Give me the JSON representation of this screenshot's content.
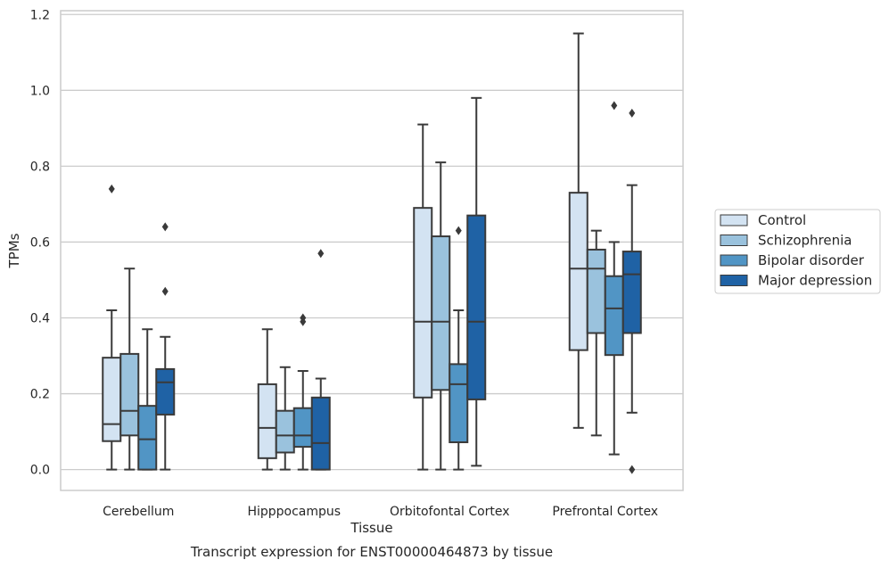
{
  "chart_data": {
    "type": "boxplot",
    "title": "Transcript expression for ENST00000464873 by tissue",
    "xlabel": "Tissue",
    "ylabel": "TPMs",
    "ylim": [
      -0.055,
      1.21
    ],
    "yticks": [
      0.0,
      0.2,
      0.4,
      0.6,
      0.8,
      1.0,
      1.2
    ],
    "ytick_labels": [
      "0.0",
      "0.2",
      "0.4",
      "0.6",
      "0.8",
      "1.0",
      "1.2"
    ],
    "grid": "horizontal",
    "legend_position": "right-outside",
    "categories": [
      "Cerebellum",
      "Hipppocampus",
      "Orbitofontal Cortex",
      "Prefrontal Cortex"
    ],
    "series": [
      {
        "name": "Control",
        "color": "#d3e3f2",
        "boxes": [
          {
            "whislo": 0.0,
            "q1": 0.075,
            "med": 0.12,
            "q3": 0.295,
            "whishi": 0.42,
            "fliers": [
              0.74
            ]
          },
          {
            "whislo": 0.0,
            "q1": 0.03,
            "med": 0.11,
            "q3": 0.225,
            "whishi": 0.37,
            "fliers": []
          },
          {
            "whislo": 0.0,
            "q1": 0.19,
            "med": 0.39,
            "q3": 0.69,
            "whishi": 0.91,
            "fliers": []
          },
          {
            "whislo": 0.11,
            "q1": 0.315,
            "med": 0.53,
            "q3": 0.73,
            "whishi": 1.15,
            "fliers": []
          }
        ]
      },
      {
        "name": "Schizophrenia",
        "color": "#9ac2dd",
        "boxes": [
          {
            "whislo": 0.0,
            "q1": 0.09,
            "med": 0.155,
            "q3": 0.305,
            "whishi": 0.53,
            "fliers": []
          },
          {
            "whislo": 0.0,
            "q1": 0.045,
            "med": 0.09,
            "q3": 0.155,
            "whishi": 0.27,
            "fliers": []
          },
          {
            "whislo": 0.0,
            "q1": 0.21,
            "med": 0.39,
            "q3": 0.615,
            "whishi": 0.81,
            "fliers": []
          },
          {
            "whislo": 0.09,
            "q1": 0.36,
            "med": 0.53,
            "q3": 0.58,
            "whishi": 0.63,
            "fliers": []
          }
        ]
      },
      {
        "name": "Bipolar disorder",
        "color": "#5195c5",
        "boxes": [
          {
            "whislo": 0.0,
            "q1": 0.0,
            "med": 0.08,
            "q3": 0.168,
            "whishi": 0.37,
            "fliers": []
          },
          {
            "whislo": 0.0,
            "q1": 0.06,
            "med": 0.09,
            "q3": 0.162,
            "whishi": 0.26,
            "fliers": [
              0.39,
              0.4
            ]
          },
          {
            "whislo": 0.0,
            "q1": 0.072,
            "med": 0.225,
            "q3": 0.278,
            "whishi": 0.42,
            "fliers": [
              0.63
            ]
          },
          {
            "whislo": 0.04,
            "q1": 0.302,
            "med": 0.425,
            "q3": 0.51,
            "whishi": 0.6,
            "fliers": [
              0.96
            ]
          }
        ]
      },
      {
        "name": "Major depression",
        "color": "#1f62a5",
        "boxes": [
          {
            "whislo": 0.0,
            "q1": 0.145,
            "med": 0.23,
            "q3": 0.265,
            "whishi": 0.35,
            "fliers": [
              0.47,
              0.64
            ]
          },
          {
            "whislo": 0.0,
            "q1": 0.0,
            "med": 0.07,
            "q3": 0.19,
            "whishi": 0.24,
            "fliers": [
              0.57
            ]
          },
          {
            "whislo": 0.01,
            "q1": 0.185,
            "med": 0.39,
            "q3": 0.67,
            "whishi": 0.98,
            "fliers": []
          },
          {
            "whislo": 0.15,
            "q1": 0.36,
            "med": 0.515,
            "q3": 0.575,
            "whishi": 0.75,
            "fliers": [
              0.0,
              0.94
            ]
          }
        ]
      }
    ]
  }
}
